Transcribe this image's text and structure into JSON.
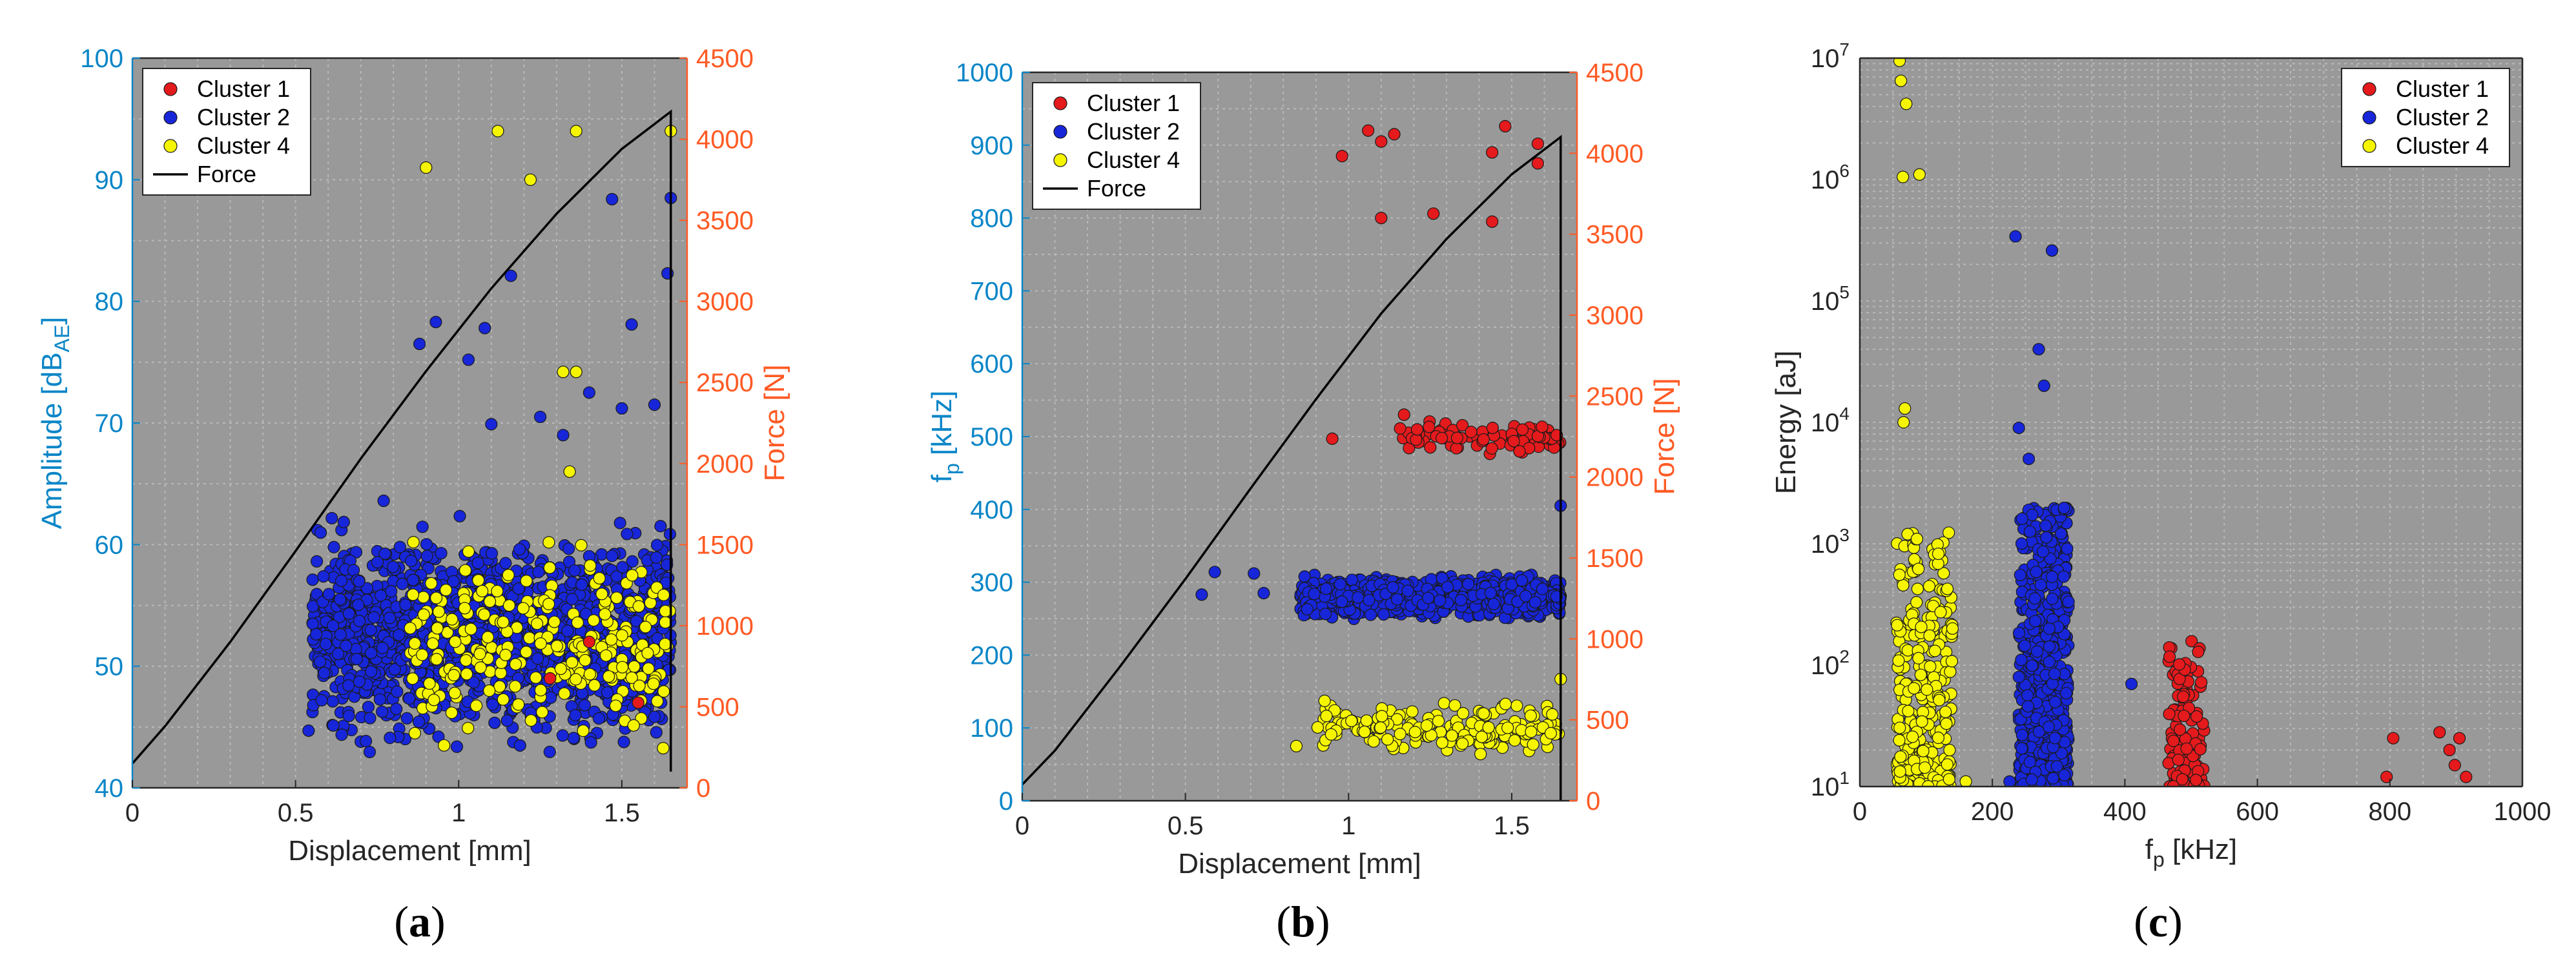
{
  "colors": {
    "plot_bg": "#999999",
    "grid": "#b9b9b9",
    "left_axis": "#0b86c7",
    "right_axis": "#ff5a24",
    "cluster1": "#e41a1c",
    "cluster2": "#1726d8",
    "cluster4": "#f5f500",
    "force": "#000000"
  },
  "panel_labels": [
    "(a)",
    "(b)",
    "(c)"
  ],
  "chart_data": [
    {
      "type": "scatter",
      "panel": "(a)",
      "xlabel": "Displacement [mm]",
      "ylabel": "Amplitude [dBAE]",
      "ylabel_parts": [
        "Amplitude [dB",
        "AE",
        "]"
      ],
      "y2label": "Force [N]",
      "xlim": [
        0,
        1.7
      ],
      "ylim": [
        40,
        100
      ],
      "y2lim": [
        0,
        4500
      ],
      "xticks": [
        0,
        0.5,
        1,
        1.5
      ],
      "xtick_labels": [
        "0",
        "0.5",
        "1",
        "1.5"
      ],
      "yticks": [
        40,
        50,
        60,
        70,
        80,
        90,
        100
      ],
      "y2ticks": [
        0,
        500,
        1000,
        1500,
        2000,
        2500,
        3000,
        3500,
        4000,
        4500
      ],
      "legend": {
        "position": "top-left",
        "entries": [
          "Cluster 1",
          "Cluster 2",
          "Cluster 4",
          "Force"
        ]
      },
      "force_curve": [
        [
          0,
          150
        ],
        [
          0.1,
          380
        ],
        [
          0.3,
          900
        ],
        [
          0.5,
          1460
        ],
        [
          0.7,
          2030
        ],
        [
          0.9,
          2570
        ],
        [
          1.1,
          3080
        ],
        [
          1.3,
          3540
        ],
        [
          1.5,
          3940
        ],
        [
          1.65,
          4170
        ],
        [
          1.65,
          100
        ]
      ],
      "series": [
        {
          "name": "Cluster 1",
          "color_key": "cluster1",
          "points": [
            [
              1.28,
              49
            ],
            [
              1.4,
              52
            ],
            [
              1.55,
              47
            ]
          ]
        },
        {
          "name": "Cluster 2",
          "color_key": "cluster2",
          "cloud": {
            "x_range": [
              0.55,
              1.65
            ],
            "y_range": [
              42,
              63
            ],
            "n": 1500
          },
          "points": [
            [
              0.54,
              44.7
            ],
            [
              0.58,
              47.2
            ],
            [
              0.77,
              63.6
            ],
            [
              0.82,
              59.8
            ],
            [
              0.88,
              76.5
            ],
            [
              0.93,
              78.3
            ],
            [
              1.03,
              75.2
            ],
            [
              1.08,
              77.8
            ],
            [
              1.1,
              69.9
            ],
            [
              1.16,
              82.1
            ],
            [
              1.25,
              70.5
            ],
            [
              1.32,
              69.0
            ],
            [
              1.4,
              72.5
            ],
            [
              1.47,
              88.4
            ],
            [
              1.53,
              78.1
            ],
            [
              1.64,
              82.3
            ],
            [
              1.65,
              88.5
            ],
            [
              1.5,
              71.2
            ],
            [
              1.6,
              71.5
            ]
          ]
        },
        {
          "name": "Cluster 4",
          "color_key": "cluster4",
          "cloud": {
            "x_range": [
              0.85,
              1.65
            ],
            "y_range": [
              42,
              62
            ],
            "n": 260
          },
          "points": [
            [
              0.9,
              91.0
            ],
            [
              1.12,
              94.0
            ],
            [
              1.22,
              90.0
            ],
            [
              1.36,
              94.0
            ],
            [
              1.65,
              94.0
            ],
            [
              1.32,
              74.2
            ],
            [
              1.36,
              74.2
            ],
            [
              1.34,
              66.0
            ]
          ]
        }
      ]
    },
    {
      "type": "scatter",
      "panel": "(b)",
      "xlabel": "Displacement [mm]",
      "ylabel": "fp [kHz]",
      "ylabel_parts": [
        "f",
        "p",
        " [kHz]"
      ],
      "y2label": "Force [N]",
      "xlim": [
        0,
        1.7
      ],
      "ylim": [
        0,
        1000
      ],
      "y2lim": [
        0,
        4500
      ],
      "xticks": [
        0,
        0.5,
        1,
        1.5
      ],
      "xtick_labels": [
        "0",
        "0.5",
        "1",
        "1.5"
      ],
      "yticks": [
        0,
        100,
        200,
        300,
        400,
        500,
        600,
        700,
        800,
        900,
        1000
      ],
      "y2ticks": [
        0,
        500,
        1000,
        1500,
        2000,
        2500,
        3000,
        3500,
        4000,
        4500
      ],
      "legend": {
        "position": "top-left",
        "entries": [
          "Cluster 1",
          "Cluster 2",
          "Cluster 4",
          "Force"
        ]
      },
      "force_curve": [
        [
          0,
          100
        ],
        [
          0.1,
          310
        ],
        [
          0.3,
          830
        ],
        [
          0.5,
          1370
        ],
        [
          0.7,
          1930
        ],
        [
          0.9,
          2480
        ],
        [
          1.1,
          3010
        ],
        [
          1.3,
          3470
        ],
        [
          1.5,
          3870
        ],
        [
          1.65,
          4100
        ],
        [
          1.65,
          0
        ]
      ],
      "series": [
        {
          "name": "Cluster 1",
          "color_key": "cluster1",
          "cloud": {
            "x_range": [
              1.15,
              1.65
            ],
            "y_range": [
              470,
              525
            ],
            "n": 90
          },
          "points": [
            [
              0.98,
              885
            ],
            [
              1.06,
              920
            ],
            [
              1.1,
              905
            ],
            [
              1.14,
              915
            ],
            [
              1.1,
              800
            ],
            [
              1.26,
              806
            ],
            [
              1.44,
              890
            ],
            [
              1.48,
              926
            ],
            [
              1.44,
              795
            ],
            [
              1.58,
              902
            ],
            [
              1.58,
              875
            ],
            [
              0.95,
              497
            ],
            [
              1.17,
              530
            ]
          ]
        },
        {
          "name": "Cluster 2",
          "color_key": "cluster2",
          "cloud": {
            "x_range": [
              0.85,
              1.65
            ],
            "y_range": [
              245,
              315
            ],
            "n": 1100
          },
          "points": [
            [
              0.55,
              283
            ],
            [
              0.59,
              314
            ],
            [
              0.71,
              312
            ],
            [
              0.74,
              285
            ],
            [
              1.65,
              405
            ]
          ]
        },
        {
          "name": "Cluster 4",
          "color_key": "cluster4",
          "cloud": {
            "x_range": [
              0.9,
              1.65
            ],
            "y_range": [
              58,
              145
            ],
            "n": 170
          },
          "points": [
            [
              0.84,
              75
            ],
            [
              1.65,
              167
            ]
          ]
        }
      ]
    },
    {
      "type": "scatter",
      "panel": "(c)",
      "xlabel": "fp [kHz]",
      "xlabel_parts": [
        "f",
        "p",
        " [kHz]"
      ],
      "ylabel": "Energy [aJ]",
      "xlim": [
        0,
        1000
      ],
      "ylim": [
        10,
        10000000
      ],
      "yscale": "log",
      "xticks": [
        0,
        200,
        400,
        600,
        800,
        1000
      ],
      "ytick_exponents": [
        1,
        2,
        3,
        4,
        5,
        6,
        7
      ],
      "legend": {
        "position": "top-right",
        "entries": [
          "Cluster 1",
          "Cluster 2",
          "Cluster 4"
        ]
      },
      "series": [
        {
          "name": "Cluster 1",
          "color_key": "cluster1",
          "cloud": {
            "x_range": [
              465,
              520
            ],
            "y_exp_range": [
              1,
              2.2
            ],
            "n": 110
          },
          "points": [
            [
              795,
              12
            ],
            [
              805,
              25
            ],
            [
              875,
              28
            ],
            [
              890,
              20
            ],
            [
              905,
              25
            ],
            [
              915,
              12
            ],
            [
              898,
              15
            ]
          ]
        },
        {
          "name": "Cluster 2",
          "color_key": "cluster2",
          "cloud": {
            "x_range": [
              240,
              315
            ],
            "y_exp_range": [
              1,
              3.3
            ],
            "n": 700
          },
          "points": [
            [
              235,
              340000
            ],
            [
              290,
              260000
            ],
            [
              270,
              40000
            ],
            [
              278,
              20000
            ],
            [
              240,
              9000
            ],
            [
              255,
              5000
            ],
            [
              410,
              70
            ],
            [
              226,
              11
            ]
          ]
        },
        {
          "name": "Cluster 4",
          "color_key": "cluster4",
          "cloud": {
            "x_range": [
              55,
              140
            ],
            "y_exp_range": [
              1,
              3.1
            ],
            "n": 300
          },
          "points": [
            [
              60,
              9500000
            ],
            [
              62,
              6500000
            ],
            [
              70,
              4200000
            ],
            [
              65,
              1050000
            ],
            [
              90,
              1100000
            ],
            [
              68,
              13000
            ],
            [
              66,
              10000
            ],
            [
              160,
              11
            ]
          ]
        }
      ]
    }
  ]
}
